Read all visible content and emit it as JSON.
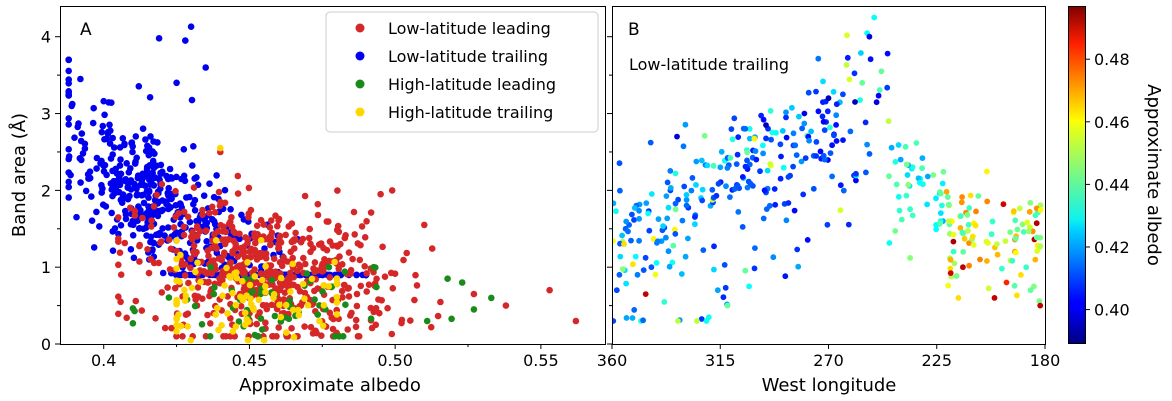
{
  "chart_data": [
    {
      "panel": "A",
      "type": "scatter",
      "xlabel": "Approximate albedo",
      "ylabel": "Band area (Å)",
      "xlim": [
        0.385,
        0.572
      ],
      "ylim": [
        0,
        4.4
      ],
      "xticks": [
        "0.4",
        "0.45",
        "0.50",
        "0.55"
      ],
      "xtick_values": [
        0.4,
        0.45,
        0.5,
        0.55
      ],
      "yticks": [
        "0",
        "1",
        "2",
        "3",
        "4"
      ],
      "ytick_values": [
        0,
        1,
        2,
        3,
        4
      ],
      "legend": "top-right",
      "series": [
        {
          "name": "Low-latitude leading",
          "color": "#d62728",
          "cluster": {
            "n": 560,
            "x": [
              0.405,
              0.562
            ],
            "y": [
              0.1,
              2.5
            ],
            "xc": 0.455,
            "yc": 0.95
          },
          "points": [
            [
              0.562,
              0.3
            ],
            [
              0.553,
              0.7
            ],
            [
              0.538,
              0.5
            ],
            [
              0.527,
              0.65
            ],
            [
              0.51,
              1.55
            ],
            [
              0.499,
              2.0
            ],
            [
              0.495,
              1.95
            ],
            [
              0.44,
              2.5
            ]
          ]
        },
        {
          "name": "Low-latitude trailing",
          "color": "#0000ee",
          "cluster": {
            "n": 560,
            "x": [
              0.388,
              0.49
            ],
            "y": [
              0.9,
              3.7
            ],
            "xc": 0.42,
            "yc": 1.85
          },
          "points": [
            [
              0.43,
              4.13
            ],
            [
              0.428,
              3.95
            ],
            [
              0.419,
              3.98
            ],
            [
              0.435,
              3.6
            ],
            [
              0.425,
              3.4
            ],
            [
              0.392,
              3.45
            ],
            [
              0.389,
              3.1
            ]
          ]
        },
        {
          "name": "High-latitude leading",
          "color": "#1a8a1a",
          "cluster": {
            "n": 65,
            "x": [
              0.41,
              0.535
            ],
            "y": [
              0.1,
              1.0
            ],
            "xc": 0.46,
            "yc": 0.45
          },
          "points": [
            [
              0.533,
              0.6
            ],
            [
              0.527,
              0.45
            ],
            [
              0.523,
              0.8
            ],
            [
              0.518,
              0.85
            ],
            [
              0.511,
              0.3
            ]
          ]
        },
        {
          "name": "High-latitude trailing",
          "color": "#ffd700",
          "cluster": {
            "n": 95,
            "x": [
              0.425,
              0.48
            ],
            "y": [
              0.05,
              1.35
            ],
            "xc": 0.448,
            "yc": 0.6
          },
          "points": [
            [
              0.44,
              2.55
            ],
            [
              0.474,
              0.3
            ],
            [
              0.455,
              0.05
            ]
          ]
        }
      ]
    },
    {
      "panel": "B",
      "type": "scatter",
      "annotation": "Low-latitude trailing",
      "xlabel": "West longitude",
      "xlim": [
        360,
        180
      ],
      "ylim": [
        0,
        4.4
      ],
      "xticks": [
        "360",
        "315",
        "270",
        "225",
        "180"
      ],
      "xtick_values": [
        360,
        315,
        270,
        225,
        180
      ],
      "colormap": "jet",
      "colorbar": {
        "label": "Approximate albedo",
        "range": [
          0.389,
          0.497
        ],
        "ticks": [
          "0.40",
          "0.42",
          "0.44",
          "0.46",
          "0.48"
        ],
        "tick_values": [
          0.4,
          0.42,
          0.44,
          0.46,
          0.48
        ]
      },
      "points_description": "albedo-colored scatter: rising trend 360→250 W, peak near 250 W, cluster near 205 W",
      "points": [
        [
          251,
          4.25
        ],
        [
          253,
          4.0
        ],
        [
          259,
          3.15
        ],
        [
          256,
          3.4
        ],
        [
          333,
          2.7
        ],
        [
          296,
          2.85
        ],
        [
          264,
          3.25
        ],
        [
          270,
          3.2
        ],
        [
          280,
          3.0
        ],
        [
          290,
          2.6
        ],
        [
          300,
          2.4
        ],
        [
          315,
          2.3
        ],
        [
          330,
          2.05
        ],
        [
          345,
          1.7
        ],
        [
          355,
          1.3
        ],
        [
          358,
          0.7
        ],
        [
          346,
          0.65
        ],
        [
          312,
          0.5
        ],
        [
          316,
          0.7
        ],
        [
          303,
          0.75
        ],
        [
          248,
          3.55
        ],
        [
          245,
          2.9
        ],
        [
          240,
          2.4
        ],
        [
          232,
          2.1
        ],
        [
          220,
          1.6
        ],
        [
          210,
          1.4
        ],
        [
          200,
          1.3
        ],
        [
          196,
          0.8
        ],
        [
          190,
          0.9
        ],
        [
          186,
          0.7
        ],
        [
          182,
          0.5
        ],
        [
          207,
          1.1
        ],
        [
          216,
          0.6
        ],
        [
          201,
          0.6
        ],
        [
          214,
          1.2
        ]
      ],
      "point_albedo": [
        0.43,
        0.4,
        0.395,
        0.44,
        0.4,
        0.395,
        0.41,
        0.395,
        0.4,
        0.41,
        0.405,
        0.42,
        0.41,
        0.43,
        0.46,
        0.41,
        0.49,
        0.44,
        0.42,
        0.43,
        0.44,
        0.45,
        0.42,
        0.43,
        0.45,
        0.46,
        0.45,
        0.48,
        0.46,
        0.44,
        0.49,
        0.47,
        0.46,
        0.49,
        0.44
      ]
    }
  ]
}
